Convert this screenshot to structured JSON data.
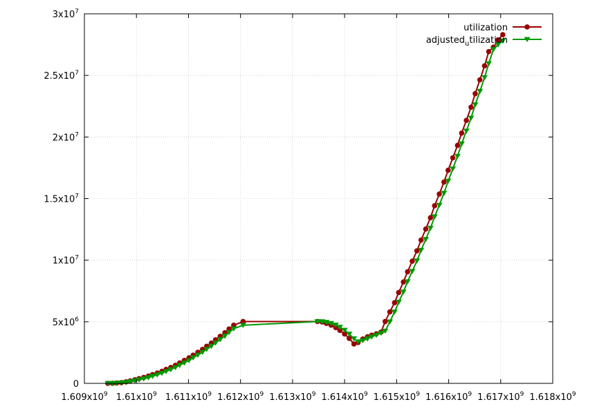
{
  "chart_data": {
    "type": "line",
    "title": "",
    "xlabel": "",
    "ylabel": "",
    "xlim": [
      1609000000,
      1618000000
    ],
    "ylim": [
      0,
      30000000
    ],
    "grid": true,
    "legend_position": "top-right",
    "x_ticks": [
      {
        "value": 1609000000,
        "mant": "1.609x10",
        "exp": "9"
      },
      {
        "value": 1610000000,
        "mant": "1.61x10",
        "exp": "9"
      },
      {
        "value": 1611000000,
        "mant": "1.611x10",
        "exp": "9"
      },
      {
        "value": 1612000000,
        "mant": "1.612x10",
        "exp": "9"
      },
      {
        "value": 1613000000,
        "mant": "1.613x10",
        "exp": "9"
      },
      {
        "value": 1614000000,
        "mant": "1.614x10",
        "exp": "9"
      },
      {
        "value": 1615000000,
        "mant": "1.615x10",
        "exp": "9"
      },
      {
        "value": 1616000000,
        "mant": "1.616x10",
        "exp": "9"
      },
      {
        "value": 1617000000,
        "mant": "1.617x10",
        "exp": "9"
      },
      {
        "value": 1618000000,
        "mant": "1.618x10",
        "exp": "9"
      }
    ],
    "y_ticks": [
      {
        "value": 0,
        "mant": "0",
        "exp": ""
      },
      {
        "value": 5000000,
        "mant": "5x10",
        "exp": "6"
      },
      {
        "value": 10000000,
        "mant": "1x10",
        "exp": "7"
      },
      {
        "value": 15000000,
        "mant": "1.5x10",
        "exp": "7"
      },
      {
        "value": 20000000,
        "mant": "2x10",
        "exp": "7"
      },
      {
        "value": 25000000,
        "mant": "2.5x10",
        "exp": "7"
      },
      {
        "value": 30000000,
        "mant": "3x10",
        "exp": "7"
      }
    ],
    "series": [
      {
        "name": "utilization",
        "legend_main": "utilization",
        "legend_sub": "",
        "legend_rest": "",
        "color": "#990000",
        "marker": "circle",
        "points": [
          [
            1609450000,
            0
          ],
          [
            1609540000,
            10000
          ],
          [
            1609620000,
            30000
          ],
          [
            1609710000,
            60000
          ],
          [
            1609800000,
            120000
          ],
          [
            1609880000,
            200000
          ],
          [
            1609970000,
            290000
          ],
          [
            1610050000,
            380000
          ],
          [
            1610140000,
            480000
          ],
          [
            1610230000,
            590000
          ],
          [
            1610310000,
            710000
          ],
          [
            1610400000,
            840000
          ],
          [
            1610490000,
            980000
          ],
          [
            1610570000,
            1130000
          ],
          [
            1610660000,
            1290000
          ],
          [
            1610750000,
            1470000
          ],
          [
            1610830000,
            1660000
          ],
          [
            1610920000,
            1860000
          ],
          [
            1611010000,
            2070000
          ],
          [
            1611090000,
            2290000
          ],
          [
            1611180000,
            2520000
          ],
          [
            1611270000,
            2760000
          ],
          [
            1611350000,
            3010000
          ],
          [
            1611440000,
            3270000
          ],
          [
            1611520000,
            3540000
          ],
          [
            1611610000,
            3820000
          ],
          [
            1611700000,
            4110000
          ],
          [
            1611780000,
            4410000
          ],
          [
            1611870000,
            4720000
          ],
          [
            1612050000,
            5020000
          ],
          [
            1613480000,
            5020000
          ],
          [
            1613570000,
            4980000
          ],
          [
            1613650000,
            4870000
          ],
          [
            1613740000,
            4730000
          ],
          [
            1613830000,
            4530000
          ],
          [
            1613910000,
            4300000
          ],
          [
            1614000000,
            4010000
          ],
          [
            1614090000,
            3650000
          ],
          [
            1614180000,
            3200000
          ],
          [
            1614260000,
            3320000
          ],
          [
            1614350000,
            3600000
          ],
          [
            1614440000,
            3780000
          ],
          [
            1614520000,
            3910000
          ],
          [
            1614610000,
            4020000
          ],
          [
            1614700000,
            4160000
          ],
          [
            1614780000,
            5020000
          ],
          [
            1614870000,
            5800000
          ],
          [
            1614960000,
            6550000
          ],
          [
            1615040000,
            7380000
          ],
          [
            1615130000,
            8230000
          ],
          [
            1615210000,
            9060000
          ],
          [
            1615300000,
            9920000
          ],
          [
            1615390000,
            10760000
          ],
          [
            1615470000,
            11630000
          ],
          [
            1615560000,
            12530000
          ],
          [
            1615650000,
            13450000
          ],
          [
            1615730000,
            14420000
          ],
          [
            1615820000,
            15370000
          ],
          [
            1615910000,
            16340000
          ],
          [
            1615990000,
            17300000
          ],
          [
            1616080000,
            18310000
          ],
          [
            1616170000,
            19320000
          ],
          [
            1616250000,
            20320000
          ],
          [
            1616340000,
            21350000
          ],
          [
            1616430000,
            22420000
          ],
          [
            1616510000,
            23520000
          ],
          [
            1616600000,
            24640000
          ],
          [
            1616690000,
            25780000
          ],
          [
            1616770000,
            26930000
          ],
          [
            1616860000,
            27290000
          ],
          [
            1616950000,
            27880000
          ],
          [
            1617040000,
            28310000
          ]
        ]
      },
      {
        "name": "adjusted_utilization",
        "legend_main": "adjusted",
        "legend_sub": "u",
        "legend_rest": "tilization",
        "color": "#009900",
        "marker": "triangle-down",
        "points": [
          [
            1609450000,
            0
          ],
          [
            1609540000,
            5000
          ],
          [
            1609620000,
            15000
          ],
          [
            1609710000,
            40000
          ],
          [
            1609800000,
            80000
          ],
          [
            1609880000,
            140000
          ],
          [
            1609970000,
            210000
          ],
          [
            1610050000,
            290000
          ],
          [
            1610140000,
            370000
          ],
          [
            1610230000,
            470000
          ],
          [
            1610310000,
            580000
          ],
          [
            1610400000,
            700000
          ],
          [
            1610490000,
            830000
          ],
          [
            1610570000,
            970000
          ],
          [
            1610660000,
            1120000
          ],
          [
            1610750000,
            1290000
          ],
          [
            1610830000,
            1470000
          ],
          [
            1610920000,
            1660000
          ],
          [
            1611010000,
            1860000
          ],
          [
            1611090000,
            2080000
          ],
          [
            1611180000,
            2300000
          ],
          [
            1611270000,
            2530000
          ],
          [
            1611350000,
            2770000
          ],
          [
            1611440000,
            3020000
          ],
          [
            1611520000,
            3280000
          ],
          [
            1611610000,
            3560000
          ],
          [
            1611700000,
            3840000
          ],
          [
            1611780000,
            4140000
          ],
          [
            1611870000,
            4440000
          ],
          [
            1612050000,
            4720000
          ],
          [
            1613480000,
            5020000
          ],
          [
            1613570000,
            5010000
          ],
          [
            1613650000,
            4960000
          ],
          [
            1613740000,
            4870000
          ],
          [
            1613830000,
            4740000
          ],
          [
            1613910000,
            4560000
          ],
          [
            1614000000,
            4320000
          ],
          [
            1614090000,
            4000000
          ],
          [
            1614180000,
            3630000
          ],
          [
            1614260000,
            3380000
          ],
          [
            1614350000,
            3480000
          ],
          [
            1614440000,
            3620000
          ],
          [
            1614520000,
            3780000
          ],
          [
            1614610000,
            3920000
          ],
          [
            1614700000,
            4080000
          ],
          [
            1614780000,
            4250000
          ],
          [
            1614870000,
            5000000
          ],
          [
            1614960000,
            5800000
          ],
          [
            1615040000,
            6600000
          ],
          [
            1615130000,
            7420000
          ],
          [
            1615210000,
            8260000
          ],
          [
            1615300000,
            9100000
          ],
          [
            1615390000,
            9950000
          ],
          [
            1615470000,
            10810000
          ],
          [
            1615560000,
            11690000
          ],
          [
            1615650000,
            12600000
          ],
          [
            1615730000,
            13530000
          ],
          [
            1615820000,
            14470000
          ],
          [
            1615910000,
            15440000
          ],
          [
            1615990000,
            16420000
          ],
          [
            1616080000,
            17420000
          ],
          [
            1616170000,
            18440000
          ],
          [
            1616250000,
            19450000
          ],
          [
            1616340000,
            20490000
          ],
          [
            1616430000,
            21540000
          ],
          [
            1616510000,
            22620000
          ],
          [
            1616600000,
            23710000
          ],
          [
            1616690000,
            24830000
          ],
          [
            1616770000,
            25960000
          ],
          [
            1616860000,
            27110000
          ],
          [
            1616950000,
            27490000
          ],
          [
            1617040000,
            27800000
          ]
        ]
      }
    ]
  }
}
